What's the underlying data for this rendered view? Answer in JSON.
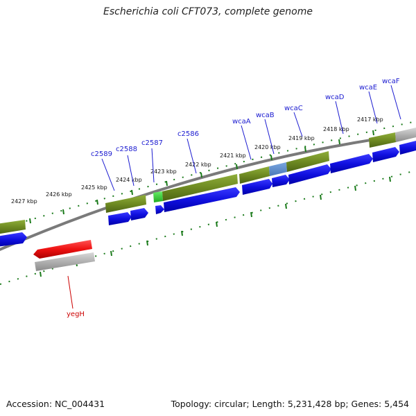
{
  "title": "Escherichia coli CFT073, complete genome",
  "accession": "Accession: NC_004431",
  "topology": "Topology: circular; Length: 5,231,428 bp; Genes: 5,454",
  "colors": {
    "gene_label_forward": "#1a1ad0",
    "gene_label_reverse": "#cc0000",
    "cds_blue": "#1010e0",
    "gene_olive": "#6e8a22",
    "gene_gray": "#b0b0b0",
    "gene_red": "#ee1111",
    "tick_green": "#1a7a1a",
    "backbone": "#888888"
  },
  "kbp_labels": [
    "2427 kbp",
    "2426 kbp",
    "2425 kbp",
    "2424 kbp",
    "2423 kbp",
    "2422 kbp",
    "2421 kbp",
    "2420 kbp",
    "2419 kbp",
    "2418 kbp",
    "2417 kbp"
  ],
  "gene_labels": [
    "c2589",
    "c2588",
    "c2587",
    "c2586",
    "wcaA",
    "wcaB",
    "wcaC",
    "wcaD",
    "wcaE",
    "wcaF",
    "yegH"
  ]
}
